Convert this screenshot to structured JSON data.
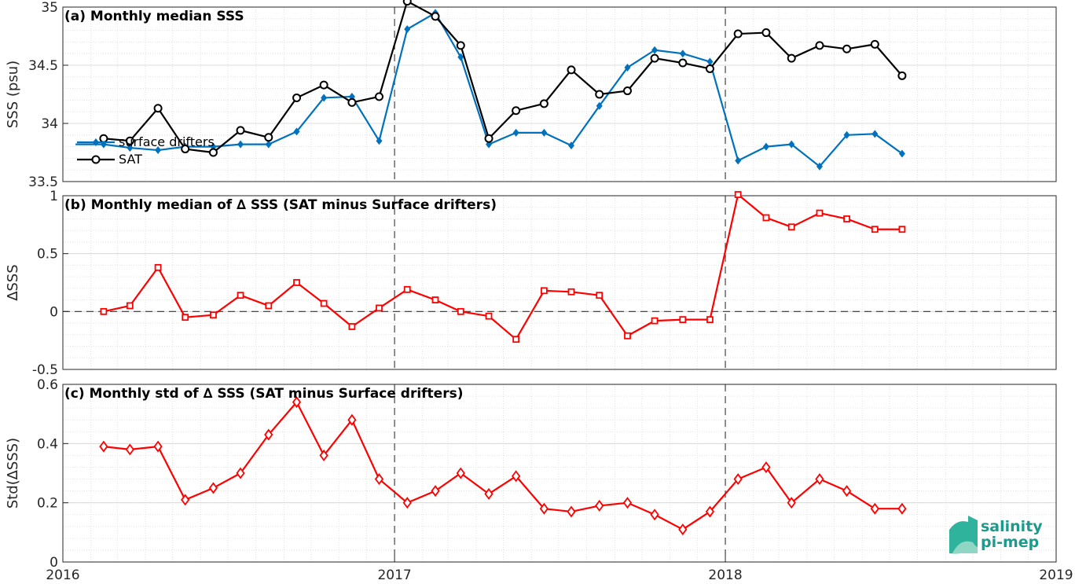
{
  "chart_data": [
    {
      "type": "line",
      "title": "(a) Monthly median SSS",
      "ylabel": "SSS (psu)",
      "ylim": [
        33.5,
        35
      ],
      "yticks": [
        33.5,
        34,
        34.5,
        35
      ],
      "ytick_labels": [
        "33.5",
        "34",
        "34.5",
        "35"
      ],
      "xlim": [
        "2016-01-01",
        "2019-01-01"
      ],
      "grid": true,
      "legend": "left",
      "vlines": [
        "2017-01-01",
        "2018-01-01"
      ],
      "series": [
        {
          "name": "surface drifters",
          "color": "#0072bd",
          "marker": "diamond-filled",
          "x": [
            "2016-01-15",
            "2016-02-15",
            "2016-03-15",
            "2016-04-15",
            "2016-05-15",
            "2016-06-15",
            "2016-07-15",
            "2016-08-15",
            "2016-09-15",
            "2016-10-15",
            "2016-11-15",
            "2016-12-15",
            "2017-01-15",
            "2017-02-15",
            "2017-03-15",
            "2017-04-15",
            "2017-05-15",
            "2017-06-15",
            "2017-07-15",
            "2017-08-15",
            "2017-09-15",
            "2017-10-15",
            "2017-11-15",
            "2017-12-15",
            "2018-01-15",
            "2018-02-15",
            "2018-03-15",
            "2018-04-15",
            "2018-05-15",
            "2018-06-15",
            "2018-07-15"
          ],
          "values": [
            33.82,
            33.82,
            33.79,
            33.77,
            33.8,
            33.8,
            33.82,
            33.82,
            33.93,
            34.22,
            34.23,
            33.85,
            34.81,
            34.95,
            34.57,
            33.82,
            33.92,
            33.92,
            33.81,
            34.15,
            34.48,
            34.63,
            34.6,
            34.53,
            33.68,
            33.8,
            33.82,
            33.63,
            33.9,
            33.91,
            33.74
          ],
          "markers_from": 1
        },
        {
          "name": "SAT",
          "color": "#000000",
          "marker": "circle-open",
          "x": [
            "2016-02-15",
            "2016-03-15",
            "2016-04-15",
            "2016-05-15",
            "2016-06-15",
            "2016-07-15",
            "2016-08-15",
            "2016-09-15",
            "2016-10-15",
            "2016-11-15",
            "2016-12-15",
            "2017-01-15",
            "2017-02-15",
            "2017-03-15",
            "2017-04-15",
            "2017-05-15",
            "2017-06-15",
            "2017-07-15",
            "2017-08-15",
            "2017-09-15",
            "2017-10-15",
            "2017-11-15",
            "2017-12-15",
            "2018-01-15",
            "2018-02-15",
            "2018-03-15",
            "2018-04-15",
            "2018-05-15",
            "2018-06-15",
            "2018-07-15"
          ],
          "values": [
            33.87,
            33.85,
            34.13,
            33.78,
            33.75,
            33.94,
            33.88,
            34.22,
            34.33,
            34.18,
            34.23,
            35.05,
            34.92,
            34.67,
            33.87,
            34.11,
            34.17,
            34.46,
            34.25,
            34.28,
            34.56,
            34.52,
            34.47,
            34.77,
            34.78,
            34.56,
            34.67,
            34.64,
            34.68,
            34.41
          ]
        }
      ]
    },
    {
      "type": "line",
      "title": "(b) Monthly median of ∆ SSS (SAT minus Surface drifters)",
      "ylabel": "∆SSS",
      "ylim": [
        -0.5,
        1
      ],
      "yticks": [
        -0.5,
        0,
        0.5,
        1
      ],
      "ytick_labels": [
        "-0.5",
        "0",
        "0.5",
        "1"
      ],
      "xlim": [
        "2016-01-01",
        "2019-01-01"
      ],
      "grid": true,
      "vlines": [
        "2017-01-01",
        "2018-01-01"
      ],
      "hline": 0,
      "series": [
        {
          "color": "#ff0000",
          "marker": "square-open",
          "x": [
            "2016-02-15",
            "2016-03-15",
            "2016-04-15",
            "2016-05-15",
            "2016-06-15",
            "2016-07-15",
            "2016-08-15",
            "2016-09-15",
            "2016-10-15",
            "2016-11-15",
            "2016-12-15",
            "2017-01-15",
            "2017-02-15",
            "2017-03-15",
            "2017-04-15",
            "2017-05-15",
            "2017-06-15",
            "2017-07-15",
            "2017-08-15",
            "2017-09-15",
            "2017-10-15",
            "2017-11-15",
            "2017-12-15",
            "2018-01-15",
            "2018-02-15",
            "2018-03-15",
            "2018-04-15",
            "2018-05-15",
            "2018-06-15",
            "2018-07-15"
          ],
          "values": [
            0.0,
            0.05,
            0.38,
            -0.05,
            -0.03,
            0.14,
            0.05,
            0.25,
            0.07,
            -0.13,
            0.03,
            0.19,
            0.1,
            0.0,
            -0.04,
            -0.24,
            0.18,
            0.17,
            0.14,
            -0.21,
            -0.08,
            -0.07,
            -0.07,
            1.01,
            0.81,
            0.73,
            0.85,
            0.8,
            0.71,
            0.71
          ]
        }
      ]
    },
    {
      "type": "line",
      "title": "(c) Monthly std of ∆ SSS (SAT minus Surface drifters)",
      "ylabel": "Std(∆SSS)",
      "ylim": [
        0,
        0.6
      ],
      "yticks": [
        0,
        0.2,
        0.4,
        0.6
      ],
      "ytick_labels": [
        "0",
        "0.2",
        "0.4",
        "0.6"
      ],
      "xlim": [
        "2016-01-01",
        "2019-01-01"
      ],
      "xticks": [
        "2016-01-01",
        "2017-01-01",
        "2018-01-01",
        "2019-01-01"
      ],
      "xtick_labels": [
        "2016",
        "2017",
        "2018",
        "2019"
      ],
      "grid": true,
      "vlines": [
        "2017-01-01",
        "2018-01-01"
      ],
      "series": [
        {
          "color": "#ff0000",
          "marker": "diamond-open",
          "x": [
            "2016-02-15",
            "2016-03-15",
            "2016-04-15",
            "2016-05-15",
            "2016-06-15",
            "2016-07-15",
            "2016-08-15",
            "2016-09-15",
            "2016-10-15",
            "2016-11-15",
            "2016-12-15",
            "2017-01-15",
            "2017-02-15",
            "2017-03-15",
            "2017-04-15",
            "2017-05-15",
            "2017-06-15",
            "2017-07-15",
            "2017-08-15",
            "2017-09-15",
            "2017-10-15",
            "2017-11-15",
            "2017-12-15",
            "2018-01-15",
            "2018-02-15",
            "2018-03-15",
            "2018-04-15",
            "2018-05-15",
            "2018-06-15",
            "2018-07-15"
          ],
          "values": [
            0.39,
            0.38,
            0.39,
            0.21,
            0.25,
            0.3,
            0.43,
            0.54,
            0.36,
            0.48,
            0.28,
            0.2,
            0.24,
            0.3,
            0.23,
            0.29,
            0.18,
            0.17,
            0.19,
            0.2,
            0.16,
            0.11,
            0.17,
            0.28,
            0.32,
            0.2,
            0.28,
            0.24,
            0.18,
            0.18
          ]
        }
      ]
    }
  ],
  "logo": {
    "line1": "salinity",
    "line2": "pi-mep",
    "color": "#1c9a8c"
  }
}
